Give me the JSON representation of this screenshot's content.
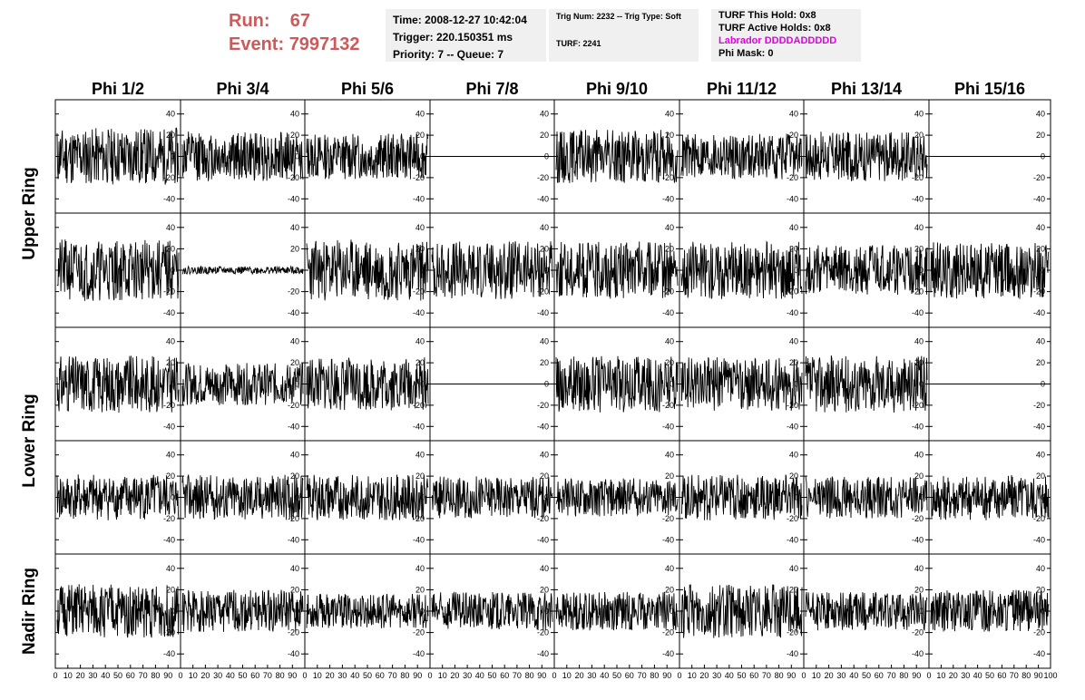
{
  "header": {
    "run_label": "Run:",
    "run_value": "67",
    "event_label": "Event:",
    "event_value": "7997132"
  },
  "info_time": {
    "time": "Time: 2008-12-27 10:42:04",
    "trigger": "Trigger: 220.150351 ms",
    "priority": "Priority: 7 -- Queue: 7"
  },
  "info_trig": {
    "trig": "Trig Num: 2232 -- Trig Type: Soft",
    "turf": "TURF: 2241"
  },
  "info_turf": {
    "hold": "TURF This Hold: 0x8",
    "active": "TURF Active Holds: 0x8",
    "labrador": "Labrador DDDDADDDDD",
    "phimask": "Phi Mask: 0"
  },
  "colors": {
    "header_red": "#cc5a5a",
    "labrador_magenta": "#e000e0",
    "box_bg": "#f0f0f0",
    "trace": "#000000"
  },
  "chart_data": {
    "type": "line",
    "columns": [
      "Phi 1/2",
      "Phi 3/4",
      "Phi 5/6",
      "Phi 7/8",
      "Phi 9/10",
      "Phi 11/12",
      "Phi 13/14",
      "Phi 15/16"
    ],
    "row_labels": [
      "Upper Ring",
      "Lower Ring",
      "Nadir Ring"
    ],
    "xlim": [
      0,
      100
    ],
    "ylim": [
      -50,
      50
    ],
    "yticks": [
      -40,
      -20,
      0,
      20,
      40
    ],
    "xticks": [
      0,
      10,
      20,
      30,
      40,
      50,
      60,
      70,
      80,
      90,
      100
    ],
    "panels": [
      [
        {
          "amp": 15,
          "seed": 11
        },
        {
          "amp": 13,
          "seed": 12
        },
        {
          "amp": 12,
          "seed": 13
        },
        {
          "amp": 0,
          "seed": 14
        },
        {
          "amp": 14,
          "seed": 15
        },
        {
          "amp": 12,
          "seed": 16
        },
        {
          "amp": 13,
          "seed": 17
        },
        {
          "amp": 0,
          "seed": 18
        }
      ],
      [
        {
          "amp": 16,
          "seed": 21
        },
        {
          "amp": 2,
          "seed": 22
        },
        {
          "amp": 16,
          "seed": 23
        },
        {
          "amp": 15,
          "seed": 24
        },
        {
          "amp": 15,
          "seed": 25
        },
        {
          "amp": 15,
          "seed": 26
        },
        {
          "amp": 13,
          "seed": 27
        },
        {
          "amp": 15,
          "seed": 28
        }
      ],
      [
        {
          "amp": 15,
          "seed": 31
        },
        {
          "amp": 11,
          "seed": 32
        },
        {
          "amp": 14,
          "seed": 33
        },
        {
          "amp": 0,
          "seed": 34
        },
        {
          "amp": 15,
          "seed": 35
        },
        {
          "amp": 14,
          "seed": 36
        },
        {
          "amp": 15,
          "seed": 37
        },
        {
          "amp": 0,
          "seed": 38
        }
      ],
      [
        {
          "amp": 12,
          "seed": 41
        },
        {
          "amp": 12,
          "seed": 42
        },
        {
          "amp": 12,
          "seed": 43
        },
        {
          "amp": 11,
          "seed": 44
        },
        {
          "amp": 10,
          "seed": 45
        },
        {
          "amp": 12,
          "seed": 46
        },
        {
          "amp": 11,
          "seed": 47
        },
        {
          "amp": 12,
          "seed": 48
        }
      ],
      [
        {
          "amp": 14,
          "seed": 51
        },
        {
          "amp": 11,
          "seed": 52
        },
        {
          "amp": 9,
          "seed": 53
        },
        {
          "amp": 10,
          "seed": 54
        },
        {
          "amp": 10,
          "seed": 55
        },
        {
          "amp": 14,
          "seed": 56
        },
        {
          "amp": 10,
          "seed": 57
        },
        {
          "amp": 11,
          "seed": 58
        }
      ]
    ]
  }
}
